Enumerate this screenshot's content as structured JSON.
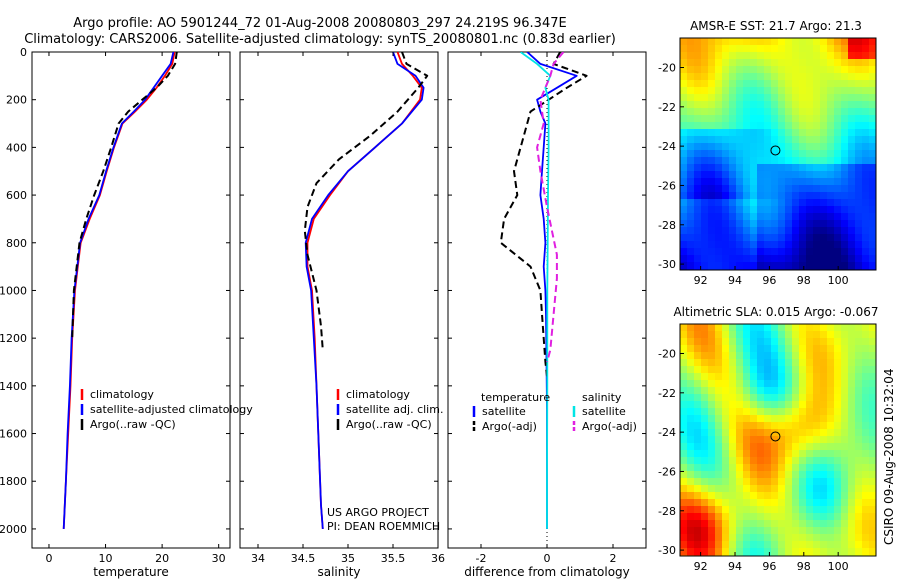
{
  "header": {
    "line1": "Argo profile: AO 5901244_72 01-Aug-2008 20080803_297 24.219S 96.347E",
    "line2": "Climatology: CARS2006. Satellite-adjusted climatology: synTS_20080801.nc (0.83d earlier)"
  },
  "colors": {
    "climatology": "#ff0000",
    "satellite": "#0000ff",
    "argo": "#000000",
    "salinity_satellite": "#00e5e5",
    "salinity_argo": "#e020e0"
  },
  "chart_data": [
    {
      "type": "line",
      "xlabel": "temperature",
      "ylabel": "",
      "xlim": [
        -3,
        32
      ],
      "ylim": [
        2080,
        0
      ],
      "y_reversed": true,
      "xticks": [
        "0",
        "10",
        "20",
        "30"
      ],
      "yticks": [
        "0",
        "200",
        "400",
        "600",
        "800",
        "1000",
        "1200",
        "1400",
        "1600",
        "1800",
        "2000"
      ],
      "legend": [
        "climatology",
        "satellite-adjusted climatology",
        "Argo(..raw -QC)"
      ],
      "series": [
        {
          "name": "climatology",
          "style": "solid",
          "x": [
            22.2,
            21.8,
            20.5,
            19.0,
            17.3,
            15.2,
            13.0,
            11.5,
            10.2,
            9.0,
            7.2,
            5.6,
            5.1,
            4.6,
            4.1,
            3.8,
            3.4,
            3.0,
            2.8,
            2.6
          ],
          "y": [
            0,
            50,
            100,
            150,
            200,
            250,
            300,
            400,
            500,
            600,
            700,
            800,
            900,
            1000,
            1200,
            1400,
            1600,
            1800,
            1900,
            2000
          ]
        },
        {
          "name": "satellite-adjusted climatology",
          "style": "solid",
          "x": [
            22.0,
            21.5,
            20.0,
            18.5,
            17.0,
            15.0,
            12.9,
            11.4,
            10.1,
            8.9,
            7.0,
            5.5,
            5.0,
            4.5,
            4.0,
            3.7,
            3.3,
            3.0,
            2.8,
            2.6
          ],
          "y": [
            0,
            50,
            100,
            150,
            200,
            250,
            300,
            400,
            500,
            600,
            700,
            800,
            900,
            1000,
            1200,
            1400,
            1600,
            1800,
            1900,
            2000
          ]
        },
        {
          "name": "Argo(..raw -QC)",
          "style": "dashed",
          "x": [
            22.6,
            22.3,
            21.0,
            19.0,
            16.5,
            14.0,
            12.3,
            11.0,
            9.6,
            8.0,
            6.6,
            5.4,
            4.9,
            4.4,
            4.1
          ],
          "y": [
            0,
            50,
            100,
            150,
            200,
            250,
            300,
            400,
            500,
            600,
            700,
            800,
            900,
            1000,
            1200
          ]
        }
      ]
    },
    {
      "type": "line",
      "xlabel": "salinity",
      "ylabel": "",
      "xlim": [
        33.8,
        36.0
      ],
      "ylim": [
        2080,
        0
      ],
      "y_reversed": true,
      "xticks": [
        "34",
        "34.5",
        "35",
        "35.5",
        "36"
      ],
      "legend": [
        "climatology",
        "satellite adj. clim.",
        "Argo(..raw -QC)"
      ],
      "annotation": [
        "US ARGO PROJECT",
        "PI: DEAN ROEMMICH"
      ],
      "series": [
        {
          "name": "climatology",
          "style": "solid",
          "x": [
            35.55,
            35.6,
            35.72,
            35.82,
            35.8,
            35.6,
            35.3,
            35.0,
            34.8,
            34.62,
            34.55,
            34.55,
            34.6,
            34.63,
            34.65,
            34.67,
            34.69,
            34.7,
            34.72
          ],
          "y": [
            0,
            50,
            100,
            150,
            200,
            300,
            400,
            500,
            600,
            700,
            800,
            900,
            1000,
            1200,
            1400,
            1600,
            1800,
            1900,
            2000
          ]
        },
        {
          "name": "satellite adj. clim.",
          "style": "solid",
          "x": [
            35.5,
            35.55,
            35.75,
            35.84,
            35.82,
            35.6,
            35.3,
            35.0,
            34.78,
            34.6,
            34.53,
            34.54,
            34.59,
            34.62,
            34.65,
            34.67,
            34.69,
            34.7,
            34.72
          ],
          "y": [
            0,
            50,
            100,
            150,
            200,
            300,
            400,
            500,
            600,
            700,
            800,
            900,
            1000,
            1200,
            1400,
            1600,
            1800,
            1900,
            2000
          ]
        },
        {
          "name": "Argo(..raw -QC)",
          "style": "dashed",
          "x": [
            35.6,
            35.65,
            35.88,
            35.78,
            35.55,
            35.25,
            34.9,
            34.65,
            34.55,
            34.52,
            34.55,
            34.65,
            34.7,
            34.72
          ],
          "y": [
            0,
            50,
            100,
            150,
            250,
            350,
            450,
            550,
            650,
            750,
            850,
            1000,
            1150,
            1250
          ]
        }
      ]
    },
    {
      "type": "line",
      "xlabel": "difference from climatology",
      "ylabel": "",
      "xlim": [
        -3.0,
        3.0
      ],
      "ylim": [
        2080,
        0
      ],
      "y_reversed": true,
      "xticks": [
        "-2",
        "0",
        "2"
      ],
      "legend": [
        {
          "group": "temperature",
          "entries": [
            "satellite",
            "Argo(-adj)"
          ]
        },
        {
          "group": "salinity",
          "entries": [
            "satellite",
            "Argo(-adj)"
          ]
        }
      ],
      "series": [
        {
          "name": "temperature satellite",
          "style": "solid",
          "x": [
            -0.6,
            -0.2,
            0.9,
            0.3,
            -0.3,
            -0.2,
            -0.05,
            -0.1,
            -0.15,
            -0.2,
            -0.1,
            -0.05,
            -0.1,
            -0.05,
            -0.03,
            -0.02,
            0,
            0,
            0
          ],
          "y": [
            0,
            50,
            100,
            150,
            200,
            250,
            300,
            400,
            500,
            600,
            700,
            800,
            900,
            1000,
            1100,
            1200,
            1500,
            1800,
            2000
          ]
        },
        {
          "name": "temperature Argo(-adj)",
          "style": "dashed",
          "x": [
            0.4,
            0.2,
            1.2,
            0.6,
            -0.5,
            -0.7,
            -0.8,
            -1.0,
            -0.9,
            -1.3,
            -1.4,
            -0.5,
            -0.2,
            -0.15,
            -0.1,
            -0.05,
            0
          ],
          "y": [
            0,
            50,
            100,
            150,
            250,
            350,
            400,
            500,
            600,
            700,
            800,
            900,
            1000,
            1100,
            1200,
            1300,
            1360
          ]
        },
        {
          "name": "salinity satellite",
          "style": "solid",
          "x": [
            -0.8,
            -0.3,
            0.1,
            -0.05,
            0.05,
            0.05,
            0.03,
            0.02,
            0.01,
            0.01,
            0.0,
            0.0
          ],
          "y": [
            0,
            50,
            100,
            150,
            200,
            400,
            600,
            800,
            1000,
            1400,
            1800,
            2000
          ]
        },
        {
          "name": "salinity Argo(-adj)",
          "style": "dashed",
          "x": [
            0.5,
            0.2,
            0.1,
            -0.2,
            -0.1,
            -0.3,
            -0.2,
            0.0,
            0.3,
            0.3,
            0.2,
            0.1,
            0.0
          ],
          "y": [
            0,
            50,
            100,
            200,
            300,
            400,
            500,
            650,
            850,
            950,
            1100,
            1250,
            1300
          ]
        }
      ]
    }
  ],
  "maps": [
    {
      "title": "AMSR-E SST: 21.7 Argo: 21.3",
      "xticks": [
        "92",
        "94",
        "96",
        "98",
        "100"
      ],
      "yticks": [
        "-20",
        "-22",
        "-24",
        "-26",
        "-28",
        "-30"
      ],
      "xlim": [
        90.8,
        102.2
      ],
      "ylim": [
        -30.3,
        -18.5
      ],
      "marker": {
        "lon": 96.35,
        "lat": -24.22
      }
    },
    {
      "title": "Altimetric SLA: 0.015 Argo: -0.067",
      "xticks": [
        "92",
        "94",
        "96",
        "98",
        "100"
      ],
      "yticks": [
        "-20",
        "-22",
        "-24",
        "-26",
        "-28",
        "-30"
      ],
      "xlim": [
        90.8,
        102.2
      ],
      "ylim": [
        -30.3,
        -18.5
      ],
      "marker": {
        "lon": 96.35,
        "lat": -24.22
      },
      "side_label": "CSIRO 09-Aug-2008 10:32:04"
    }
  ]
}
